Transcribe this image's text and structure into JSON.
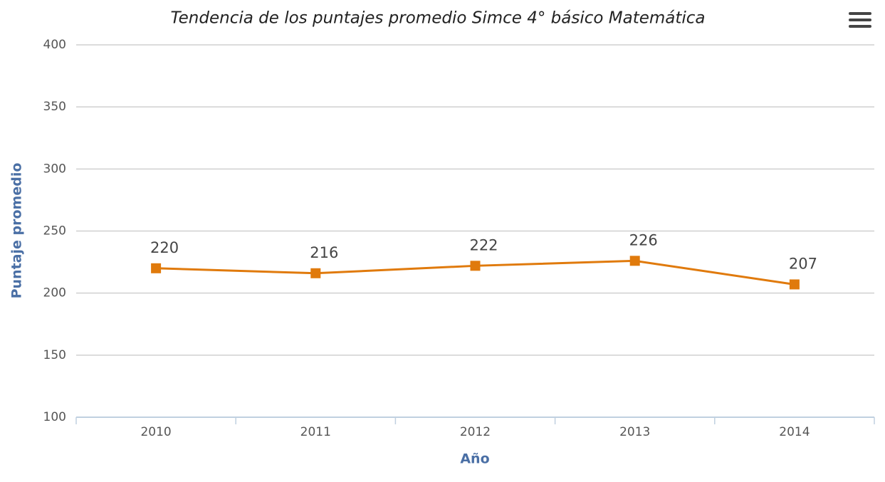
{
  "chart_data": {
    "type": "line",
    "title": "Tendencia de los puntajes promedio Simce 4° básico Matemática",
    "x_label": "Año",
    "y_label": "Puntaje promedio",
    "categories": [
      "2010",
      "2011",
      "2012",
      "2013",
      "2014"
    ],
    "values": [
      220,
      216,
      222,
      226,
      207
    ],
    "color": "#e07a0c",
    "ylim": [
      100,
      400
    ],
    "yticks": [
      100,
      150,
      200,
      250,
      300,
      350,
      400
    ],
    "grid": true,
    "data_labels": true
  }
}
